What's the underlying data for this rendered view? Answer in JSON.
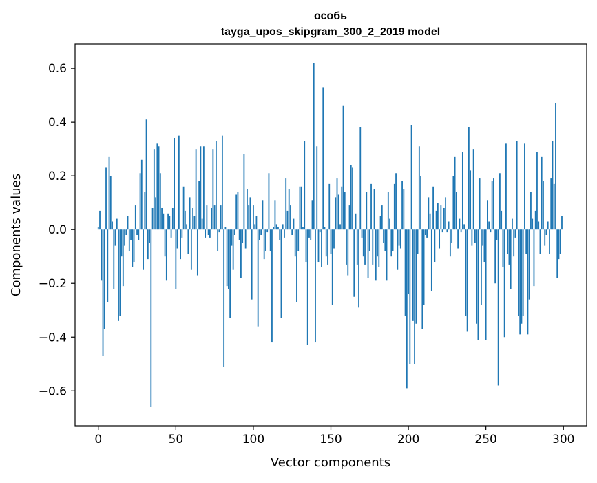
{
  "chart_data": {
    "type": "bar",
    "title": "особь",
    "subtitle": "tayga_upos_skipgram_300_2_2019 model",
    "xlabel": "Vector components",
    "ylabel": "Components values",
    "xlim": [
      -15,
      315
    ],
    "ylim": [
      -0.73,
      0.69
    ],
    "xticks": [
      0,
      50,
      100,
      150,
      200,
      250,
      300
    ],
    "yticks": [
      -0.6,
      -0.4,
      -0.2,
      0.0,
      0.2,
      0.4,
      0.6
    ],
    "ytick_labels": [
      "−0.6",
      "−0.4",
      "−0.2",
      "0.0",
      "0.2",
      "0.4",
      "0.6"
    ],
    "bar_color": "#1f77b4",
    "x_start": 0,
    "values": [
      0.01,
      0.07,
      -0.19,
      -0.47,
      -0.37,
      0.23,
      -0.27,
      0.27,
      0.2,
      0.03,
      -0.22,
      -0.06,
      0.04,
      -0.34,
      -0.32,
      -0.1,
      -0.21,
      -0.06,
      -0.02,
      0.05,
      -0.08,
      -0.04,
      -0.14,
      -0.12,
      0.09,
      -0.02,
      -0.04,
      0.21,
      0.26,
      -0.15,
      0.14,
      0.41,
      -0.11,
      -0.05,
      -0.66,
      0.08,
      0.3,
      0.12,
      0.32,
      0.31,
      0.21,
      0.08,
      0.06,
      -0.1,
      -0.19,
      0.06,
      0.05,
      -0.03,
      0.08,
      0.34,
      -0.22,
      -0.07,
      0.35,
      -0.11,
      -0.03,
      0.16,
      0.07,
      0.02,
      -0.09,
      0.12,
      -0.15,
      0.08,
      0.05,
      0.3,
      -0.17,
      0.18,
      0.31,
      0.04,
      0.31,
      -0.03,
      0.09,
      -0.02,
      -0.03,
      0.08,
      0.3,
      0.09,
      0.33,
      -0.08,
      -0.01,
      0.09,
      0.35,
      -0.51,
      0.01,
      -0.21,
      -0.22,
      -0.33,
      -0.06,
      -0.15,
      -0.02,
      0.13,
      0.14,
      -0.04,
      -0.18,
      -0.05,
      0.28,
      -0.07,
      0.15,
      0.09,
      0.12,
      -0.26,
      0.09,
      0.02,
      0.05,
      -0.36,
      -0.04,
      -0.02,
      0.11,
      -0.11,
      -0.08,
      -0.01,
      0.21,
      -0.08,
      -0.42,
      0.01,
      0.11,
      0.02,
      0.01,
      -0.04,
      -0.33,
      0.02,
      -0.03,
      0.19,
      0.07,
      0.15,
      0.09,
      -0.02,
      0.04,
      -0.1,
      -0.27,
      -0.08,
      0.16,
      0.16,
      0.01,
      0.33,
      -0.12,
      -0.43,
      -0.03,
      -0.04,
      0.11,
      0.62,
      -0.42,
      0.31,
      -0.12,
      -0.01,
      -0.14,
      0.53,
      0.01,
      -0.1,
      -0.13,
      0.17,
      -0.09,
      -0.28,
      -0.07,
      0.12,
      0.19,
      0.13,
      0.02,
      0.16,
      0.46,
      0.14,
      -0.13,
      -0.17,
      0.09,
      0.24,
      0.23,
      -0.25,
      0.06,
      -0.13,
      -0.29,
      0.38,
      -0.03,
      -0.1,
      -0.13,
      0.14,
      -0.18,
      -0.08,
      0.17,
      -0.13,
      0.15,
      -0.19,
      -0.1,
      -0.14,
      0.05,
      0.09,
      -0.05,
      -0.08,
      -0.19,
      0.14,
      0.04,
      -0.1,
      -0.08,
      0.17,
      0.21,
      -0.15,
      -0.06,
      -0.07,
      0.18,
      0.15,
      -0.32,
      -0.59,
      -0.24,
      -0.5,
      0.39,
      -0.34,
      -0.5,
      -0.35,
      -0.09,
      0.31,
      0.2,
      -0.37,
      -0.28,
      -0.02,
      -0.03,
      0.12,
      0.06,
      -0.23,
      0.16,
      -0.12,
      0.07,
      0.1,
      -0.07,
      0.09,
      -0.01,
      0.08,
      0.12,
      -0.01,
      0.03,
      -0.1,
      -0.05,
      0.2,
      0.27,
      0.14,
      -0.07,
      0.04,
      -0.01,
      0.29,
      0.02,
      -0.32,
      -0.38,
      0.38,
      0.22,
      -0.06,
      0.3,
      -0.05,
      -0.35,
      -0.41,
      0.19,
      -0.28,
      -0.06,
      -0.12,
      -0.41,
      0.11,
      0.03,
      -0.01,
      0.18,
      0.19,
      -0.2,
      -0.04,
      -0.58,
      0.21,
      0.07,
      -0.14,
      -0.4,
      0.32,
      -0.09,
      -0.13,
      -0.22,
      0.04,
      -0.1,
      -0.03,
      0.33,
      -0.32,
      -0.39,
      -0.35,
      -0.32,
      0.32,
      -0.09,
      -0.39,
      -0.26,
      0.14,
      0.04,
      -0.21,
      0.07,
      0.29,
      0.03,
      -0.09,
      0.27,
      0.18,
      -0.06,
      -0.02,
      0.03,
      -0.09,
      0.19,
      0.33,
      0.17,
      0.47,
      -0.18,
      -0.11,
      -0.09,
      0.05
    ]
  }
}
